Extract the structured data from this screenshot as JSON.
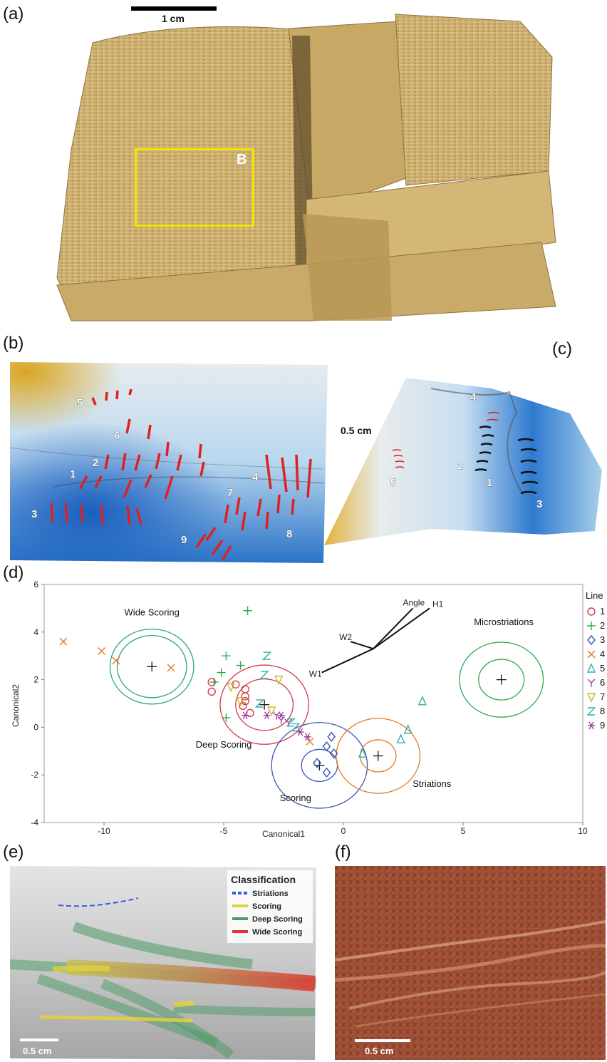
{
  "panels": {
    "a": {
      "label": "(a)",
      "scale_text": "1 cm",
      "box_label": "B"
    },
    "b": {
      "label": "(b)",
      "line_numbers": [
        "5",
        "6",
        "2",
        "1",
        "3",
        "4",
        "7",
        "9",
        "8"
      ]
    },
    "c": {
      "label": "(c)",
      "scale_text": "0.5 cm",
      "line_numbers": [
        "4",
        "2",
        "1",
        "5",
        "3"
      ]
    },
    "d": {
      "label": "(d)"
    },
    "e": {
      "label": "(e)",
      "scale_text": "0.5 cm",
      "legend_title": "Classification",
      "legend_items": [
        {
          "label": "Striations",
          "color": "#3b5bdb",
          "style": "dashed"
        },
        {
          "label": "Scoring",
          "color": "#e0d23a",
          "style": "solid"
        },
        {
          "label": "Deep Scoring",
          "color": "#4a9a63",
          "style": "solid"
        },
        {
          "label": "Wide Scoring",
          "color": "#e0352b",
          "style": "solid"
        }
      ]
    },
    "f": {
      "label": "(f)",
      "scale_text": "0.5 cm"
    }
  },
  "colors": {
    "sediment": "#d8bb7a",
    "heatmap_blue": "#2f7fd0",
    "red_marks": "#e02020",
    "yellow_box": "#f2e600",
    "rock_photo": "#9b4a2f"
  },
  "chart_data": {
    "type": "scatter",
    "xlabel": "Canonical1",
    "ylabel": "Canonical2",
    "xlim": [
      -12.5,
      10
    ],
    "ylim": [
      -4,
      6
    ],
    "xticks": [
      "-10",
      "-5",
      "0",
      "5",
      "10"
    ],
    "yticks": [
      "-4",
      "-2",
      "0",
      "2",
      "4",
      "6"
    ],
    "legend_title": "Line",
    "series": [
      {
        "name": "1",
        "marker": "circle",
        "color": "#d33a4a",
        "points": [
          [
            -5.5,
            1.9
          ],
          [
            -5.5,
            1.5
          ],
          [
            -4.5,
            1.8
          ],
          [
            -4.1,
            1.6
          ],
          [
            -4.1,
            1.3
          ],
          [
            -4.1,
            1.1
          ],
          [
            -4.2,
            0.9
          ],
          [
            -3.9,
            0.6
          ]
        ]
      },
      {
        "name": "2",
        "marker": "plus",
        "color": "#2fa84f",
        "points": [
          [
            -4.0,
            4.9
          ],
          [
            -4.9,
            3.0
          ],
          [
            -5.1,
            2.3
          ],
          [
            -5.4,
            1.9
          ],
          [
            -4.3,
            2.6
          ],
          [
            -4.9,
            0.4
          ]
        ]
      },
      {
        "name": "3",
        "marker": "diamond",
        "color": "#3a57b5",
        "points": [
          [
            -0.5,
            -0.4
          ],
          [
            -0.7,
            -0.8
          ],
          [
            -0.4,
            -1.1
          ],
          [
            -0.7,
            -1.9
          ],
          [
            -1.1,
            -1.5
          ]
        ]
      },
      {
        "name": "4",
        "marker": "x",
        "color": "#e07a23",
        "points": [
          [
            -11.7,
            3.6
          ],
          [
            -10.1,
            3.2
          ],
          [
            -9.5,
            2.8
          ],
          [
            -7.2,
            2.5
          ],
          [
            -1.4,
            -0.6
          ]
        ]
      },
      {
        "name": "5",
        "marker": "triangle",
        "color": "#33b39c",
        "points": [
          [
            3.3,
            1.1
          ],
          [
            2.7,
            -0.1
          ],
          [
            2.4,
            -0.5
          ],
          [
            0.8,
            -1.1
          ]
        ]
      },
      {
        "name": "6",
        "marker": "y",
        "color": "#a13fa8",
        "points": [
          [
            -2.8,
            0.5
          ],
          [
            -2.6,
            0.3
          ],
          [
            -2.3,
            0.2
          ]
        ]
      },
      {
        "name": "7",
        "marker": "triangle-down",
        "color": "#c9b620",
        "points": [
          [
            -4.7,
            1.7
          ],
          [
            -2.7,
            2.0
          ],
          [
            -4.3,
            1.1
          ],
          [
            -3.0,
            0.7
          ]
        ]
      },
      {
        "name": "8",
        "marker": "z",
        "color": "#2fb0a8",
        "points": [
          [
            -3.2,
            3.0
          ],
          [
            -3.3,
            2.2
          ],
          [
            -3.5,
            1.0
          ],
          [
            -2.2,
            0.2
          ],
          [
            -2.0,
            0.0
          ]
        ]
      },
      {
        "name": "9",
        "marker": "asterisk",
        "color": "#a13fa8",
        "points": [
          [
            -4.1,
            0.5
          ],
          [
            -3.2,
            0.5
          ],
          [
            -2.6,
            0.5
          ],
          [
            -1.8,
            -0.2
          ],
          [
            -1.5,
            -0.4
          ]
        ]
      }
    ],
    "centroids": [
      {
        "name": "Wide Scoring",
        "x": -8.0,
        "y": 2.55,
        "r_inner": 1.45,
        "r_outer": 1.75,
        "color": "#2aa37d"
      },
      {
        "name": "Deep Scoring",
        "x": -3.3,
        "y": 0.95,
        "r_inner": 1.2,
        "r_outer": 1.85,
        "color": "#d33a4a"
      },
      {
        "name": "Scoring",
        "x": -1.0,
        "y": -1.6,
        "r_inner": 0.75,
        "r_outer": 2.0,
        "color": "#3a57b5"
      },
      {
        "name": "Striations",
        "x": 1.45,
        "y": -1.2,
        "r_inner": 0.75,
        "r_outer": 1.75,
        "color": "#e07a23"
      },
      {
        "name": "Microstriations",
        "x": 6.6,
        "y": 2.0,
        "r_inner": 0.95,
        "r_outer": 1.75,
        "color": "#2fa84f"
      }
    ],
    "biplot": {
      "origin": [
        1.25,
        3.3
      ],
      "vectors": [
        {
          "name": "Angle",
          "x": 2.9,
          "y": 5.0
        },
        {
          "name": "H1",
          "x": 3.6,
          "y": 5.0
        },
        {
          "name": "W2",
          "x": 0.3,
          "y": 3.6
        },
        {
          "name": "W1",
          "x": -0.9,
          "y": 2.3
        }
      ]
    }
  }
}
